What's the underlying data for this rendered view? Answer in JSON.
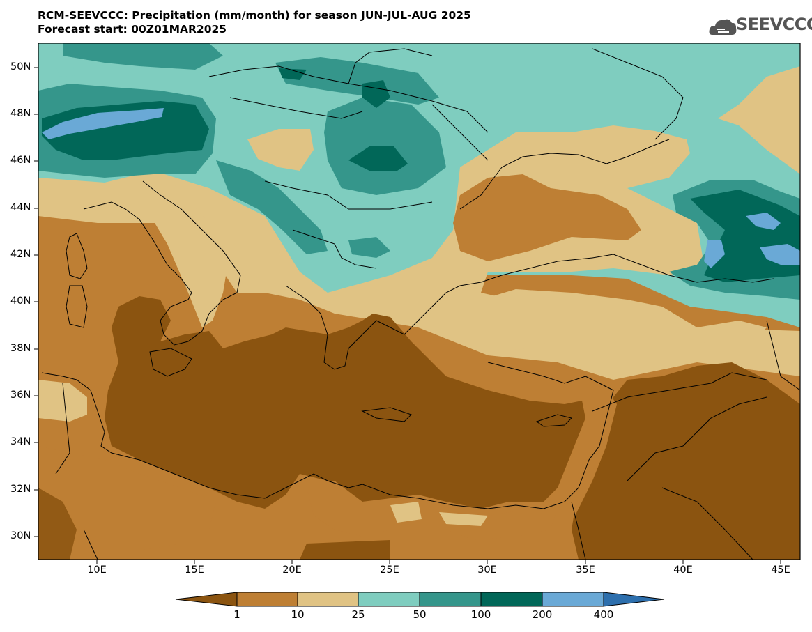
{
  "title": {
    "line1": "RCM-SEEVCCC: Precipitation (mm/month) for season JUN-JUL-AUG 2025",
    "line2": "Forecast start: 00Z01MAR2025"
  },
  "logo": {
    "text": "SEEVCCC",
    "icon": "cloud-logo-icon"
  },
  "map": {
    "lat_ticks": [
      "50N",
      "48N",
      "46N",
      "44N",
      "42N",
      "40N",
      "38N",
      "36N",
      "34N",
      "32N",
      "30N"
    ],
    "lon_ticks": [
      "10E",
      "15E",
      "20E",
      "25E",
      "30E",
      "35E",
      "40E",
      "45E"
    ],
    "lat_range": [
      29,
      51
    ],
    "lon_range": [
      7,
      46
    ]
  },
  "colorbar": {
    "labels": [
      "1",
      "10",
      "25",
      "50",
      "100",
      "200",
      "400"
    ],
    "colors": [
      "#8b5410",
      "#be7f34",
      "#e0c384",
      "#7fcdbf",
      "#35968b",
      "#016758",
      "#6aa9d6",
      "#2d6fad"
    ]
  }
}
